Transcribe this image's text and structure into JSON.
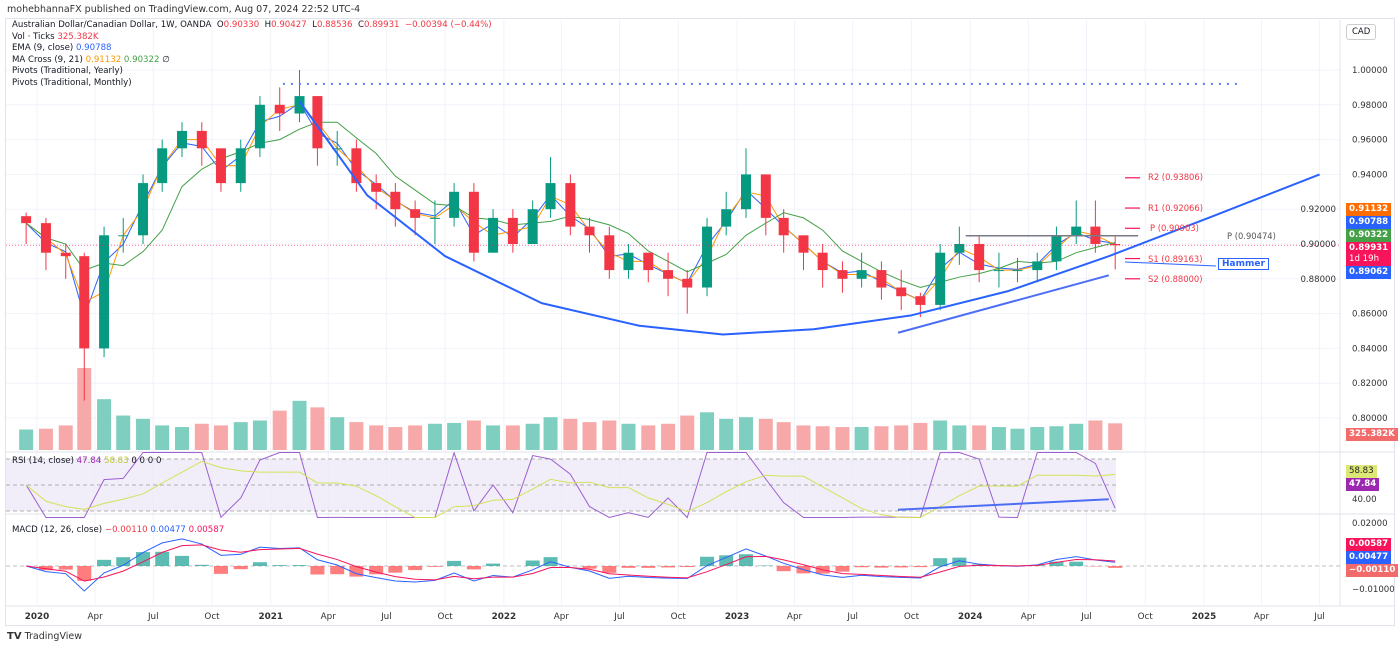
{
  "header": {
    "published": "mohebhannaFX published on TradingView.com, Aug 07, 2024 22:52 UTC-4"
  },
  "legend": {
    "symbol": "Australian Dollar/Canadian Dollar, 1W, OANDA",
    "o": "0.90330",
    "h": "0.90427",
    "l": "0.88536",
    "c": "0.89931",
    "change": "−0.00394 (−0.44%)",
    "vol": "Vol · Ticks",
    "vol_value": "325.382K",
    "ema": "EMA (9, close)",
    "ema_value": "0.90788",
    "ma_cross": "MA Cross (9, 21)",
    "ma_fast": "0.91132",
    "ma_slow": "0.90322",
    "ma_extra": "∅",
    "pivots_yearly": "Pivots (Traditional, Yearly)",
    "pivots_monthly": "Pivots (Traditional, Monthly)",
    "rsi": "RSI (14, close)",
    "rsi_value": "47.84",
    "rsi_ma": "58.83",
    "rsi_extra": "0 0 0 0",
    "macd": "MACD (12, 26, close)",
    "macd_hist": "−0.00110",
    "macd_line": "0.00477",
    "macd_signal": "0.00587"
  },
  "currency": "CAD",
  "price_tags": [
    {
      "label": "0.91132",
      "color": "#ff6d00"
    },
    {
      "label": "0.90788",
      "color": "#2962ff"
    },
    {
      "label": "0.90322",
      "color": "#43a047"
    },
    {
      "label": "0.89931",
      "sub": "1d 19h",
      "color": "#f7145a"
    },
    {
      "label": "0.89062",
      "color": "#2962ff"
    }
  ],
  "indicator_tags": {
    "volume": "325.382K",
    "rsi_ma": "58.83",
    "rsi": "47.84",
    "macd_signal": "0.00587",
    "macd": "0.00477",
    "macd_hist": "−0.00110"
  },
  "pivots_monthly": [
    {
      "label": "R2 (0.93806)",
      "value": 0.93806
    },
    {
      "label": "R1 (0.92066)",
      "value": 0.92066
    },
    {
      "label": "P (0.90903)",
      "value": 0.90903
    },
    {
      "label": "S1 (0.89163)",
      "value": 0.89163
    },
    {
      "label": "S2 (0.88000)",
      "value": 0.88
    }
  ],
  "pivot_yearly": {
    "label": "P (0.90474)",
    "value": 0.90474
  },
  "annotation": "Hammer",
  "footer": "TradingView",
  "colors": {
    "up": "#089981",
    "down": "#f23645",
    "ema": "#2962ff",
    "ma_fast": "#ff9800",
    "ma_slow": "#43a047",
    "rsi": "#9c5fd1",
    "rsi_ma": "#d4e157",
    "drawing": "#2962ff"
  },
  "chart_data": {
    "type": "candlestick",
    "interval_shown": "1W",
    "price_axis": {
      "ticks": [
        1.0,
        0.98,
        0.96,
        0.94,
        0.92,
        0.9,
        0.88,
        0.86,
        0.84,
        0.82,
        0.8
      ],
      "range": [
        0.795,
        1.0
      ]
    },
    "time_axis": {
      "ticks": [
        "2020",
        "Apr",
        "Jul",
        "Oct",
        "2021",
        "Apr",
        "Jul",
        "Oct",
        "2022",
        "Apr",
        "Jul",
        "Oct",
        "2023",
        "Apr",
        "Jul",
        "Oct",
        "2024",
        "Apr",
        "Jul",
        "Oct",
        "2025",
        "Apr",
        "Jul"
      ]
    },
    "rsi_axis": {
      "ticks": [
        40.0
      ],
      "bands": [
        70,
        50,
        30
      ]
    },
    "macd_axis": {
      "ticks": [
        0.02,
        -0.01
      ]
    },
    "months": [
      "2019-12",
      "2020-01",
      "2020-02",
      "2020-03",
      "2020-04",
      "2020-05",
      "2020-06",
      "2020-07",
      "2020-08",
      "2020-09",
      "2020-10",
      "2020-11",
      "2020-12",
      "2021-01",
      "2021-02",
      "2021-03",
      "2021-04",
      "2021-05",
      "2021-06",
      "2021-07",
      "2021-08",
      "2021-09",
      "2021-10",
      "2021-11",
      "2021-12",
      "2022-01",
      "2022-02",
      "2022-03",
      "2022-04",
      "2022-05",
      "2022-06",
      "2022-07",
      "2022-08",
      "2022-09",
      "2022-10",
      "2022-11",
      "2022-12",
      "2023-01",
      "2023-02",
      "2023-03",
      "2023-04",
      "2023-05",
      "2023-06",
      "2023-07",
      "2023-08",
      "2023-09",
      "2023-10",
      "2023-11",
      "2023-12",
      "2024-01",
      "2024-02",
      "2024-03",
      "2024-04",
      "2024-05",
      "2024-06",
      "2024-07",
      "2024-08"
    ],
    "close": [
      0.912,
      0.895,
      0.893,
      0.84,
      0.905,
      0.905,
      0.935,
      0.955,
      0.965,
      0.955,
      0.935,
      0.955,
      0.98,
      0.975,
      0.985,
      0.955,
      0.955,
      0.935,
      0.93,
      0.92,
      0.915,
      0.915,
      0.93,
      0.895,
      0.915,
      0.9,
      0.92,
      0.935,
      0.91,
      0.905,
      0.885,
      0.895,
      0.885,
      0.88,
      0.875,
      0.91,
      0.92,
      0.94,
      0.915,
      0.905,
      0.895,
      0.885,
      0.88,
      0.885,
      0.875,
      0.87,
      0.865,
      0.895,
      0.9,
      0.885,
      0.885,
      0.885,
      0.89,
      0.905,
      0.91,
      0.9,
      0.89931
    ],
    "low": [
      0.9,
      0.885,
      0.88,
      0.81,
      0.835,
      0.895,
      0.9,
      0.93,
      0.95,
      0.945,
      0.93,
      0.93,
      0.95,
      0.965,
      0.97,
      0.945,
      0.945,
      0.93,
      0.92,
      0.91,
      0.905,
      0.9,
      0.91,
      0.89,
      0.895,
      0.895,
      0.9,
      0.915,
      0.905,
      0.895,
      0.88,
      0.88,
      0.878,
      0.87,
      0.86,
      0.87,
      0.905,
      0.915,
      0.905,
      0.895,
      0.885,
      0.875,
      0.872,
      0.875,
      0.868,
      0.862,
      0.858,
      0.862,
      0.888,
      0.878,
      0.875,
      0.878,
      0.878,
      0.885,
      0.9,
      0.895,
      0.88536
    ],
    "high": [
      0.918,
      0.915,
      0.9,
      0.895,
      0.91,
      0.915,
      0.94,
      0.96,
      0.97,
      0.97,
      0.955,
      0.96,
      0.985,
      0.99,
      1.0,
      0.985,
      0.965,
      0.96,
      0.94,
      0.935,
      0.925,
      0.925,
      0.935,
      0.935,
      0.92,
      0.92,
      0.925,
      0.95,
      0.94,
      0.915,
      0.91,
      0.9,
      0.895,
      0.895,
      0.885,
      0.915,
      0.93,
      0.955,
      0.94,
      0.92,
      0.905,
      0.9,
      0.89,
      0.895,
      0.89,
      0.885,
      0.872,
      0.9,
      0.91,
      0.905,
      0.895,
      0.892,
      0.895,
      0.91,
      0.925,
      0.925,
      0.90427
    ],
    "volume_k": [
      250,
      260,
      300,
      1000,
      620,
      420,
      380,
      300,
      280,
      320,
      300,
      340,
      360,
      480,
      600,
      520,
      400,
      340,
      300,
      280,
      300,
      320,
      330,
      360,
      300,
      300,
      320,
      400,
      380,
      340,
      360,
      320,
      300,
      320,
      420,
      460,
      380,
      400,
      380,
      340,
      300,
      290,
      280,
      280,
      290,
      300,
      330,
      360,
      300,
      300,
      280,
      260,
      280,
      290,
      320,
      360,
      325.382
    ],
    "drawings": {
      "cup_curve": [
        [
          "2021-02-15",
          0.982
        ],
        [
          "2021-06-01",
          0.928
        ],
        [
          "2021-10-01",
          0.893
        ],
        [
          "2022-03-01",
          0.866
        ],
        [
          "2022-08-01",
          0.853
        ],
        [
          "2022-12-10",
          0.848
        ],
        [
          "2023-05-01",
          0.851
        ],
        [
          "2023-10-01",
          0.859
        ],
        [
          "2024-03-01",
          0.873
        ],
        [
          "2024-08-05",
          0.893
        ],
        [
          "2025-01-15",
          0.916
        ],
        [
          "2025-07-01",
          0.94
        ]
      ],
      "support_line": [
        [
          "2023-09-10",
          0.849
        ],
        [
          "2024-08-05",
          0.882
        ]
      ],
      "rsi_trendline": [
        [
          "2023-09-10",
          31
        ],
        [
          "2024-08-05",
          39
        ]
      ],
      "dotted_level": {
        "value": 0.992,
        "from": "2021-01-20",
        "to": "2025-02-25"
      },
      "pivot_yearly_from": "2023-12-25",
      "pivot_yearly_to": "2024-09-20"
    }
  }
}
